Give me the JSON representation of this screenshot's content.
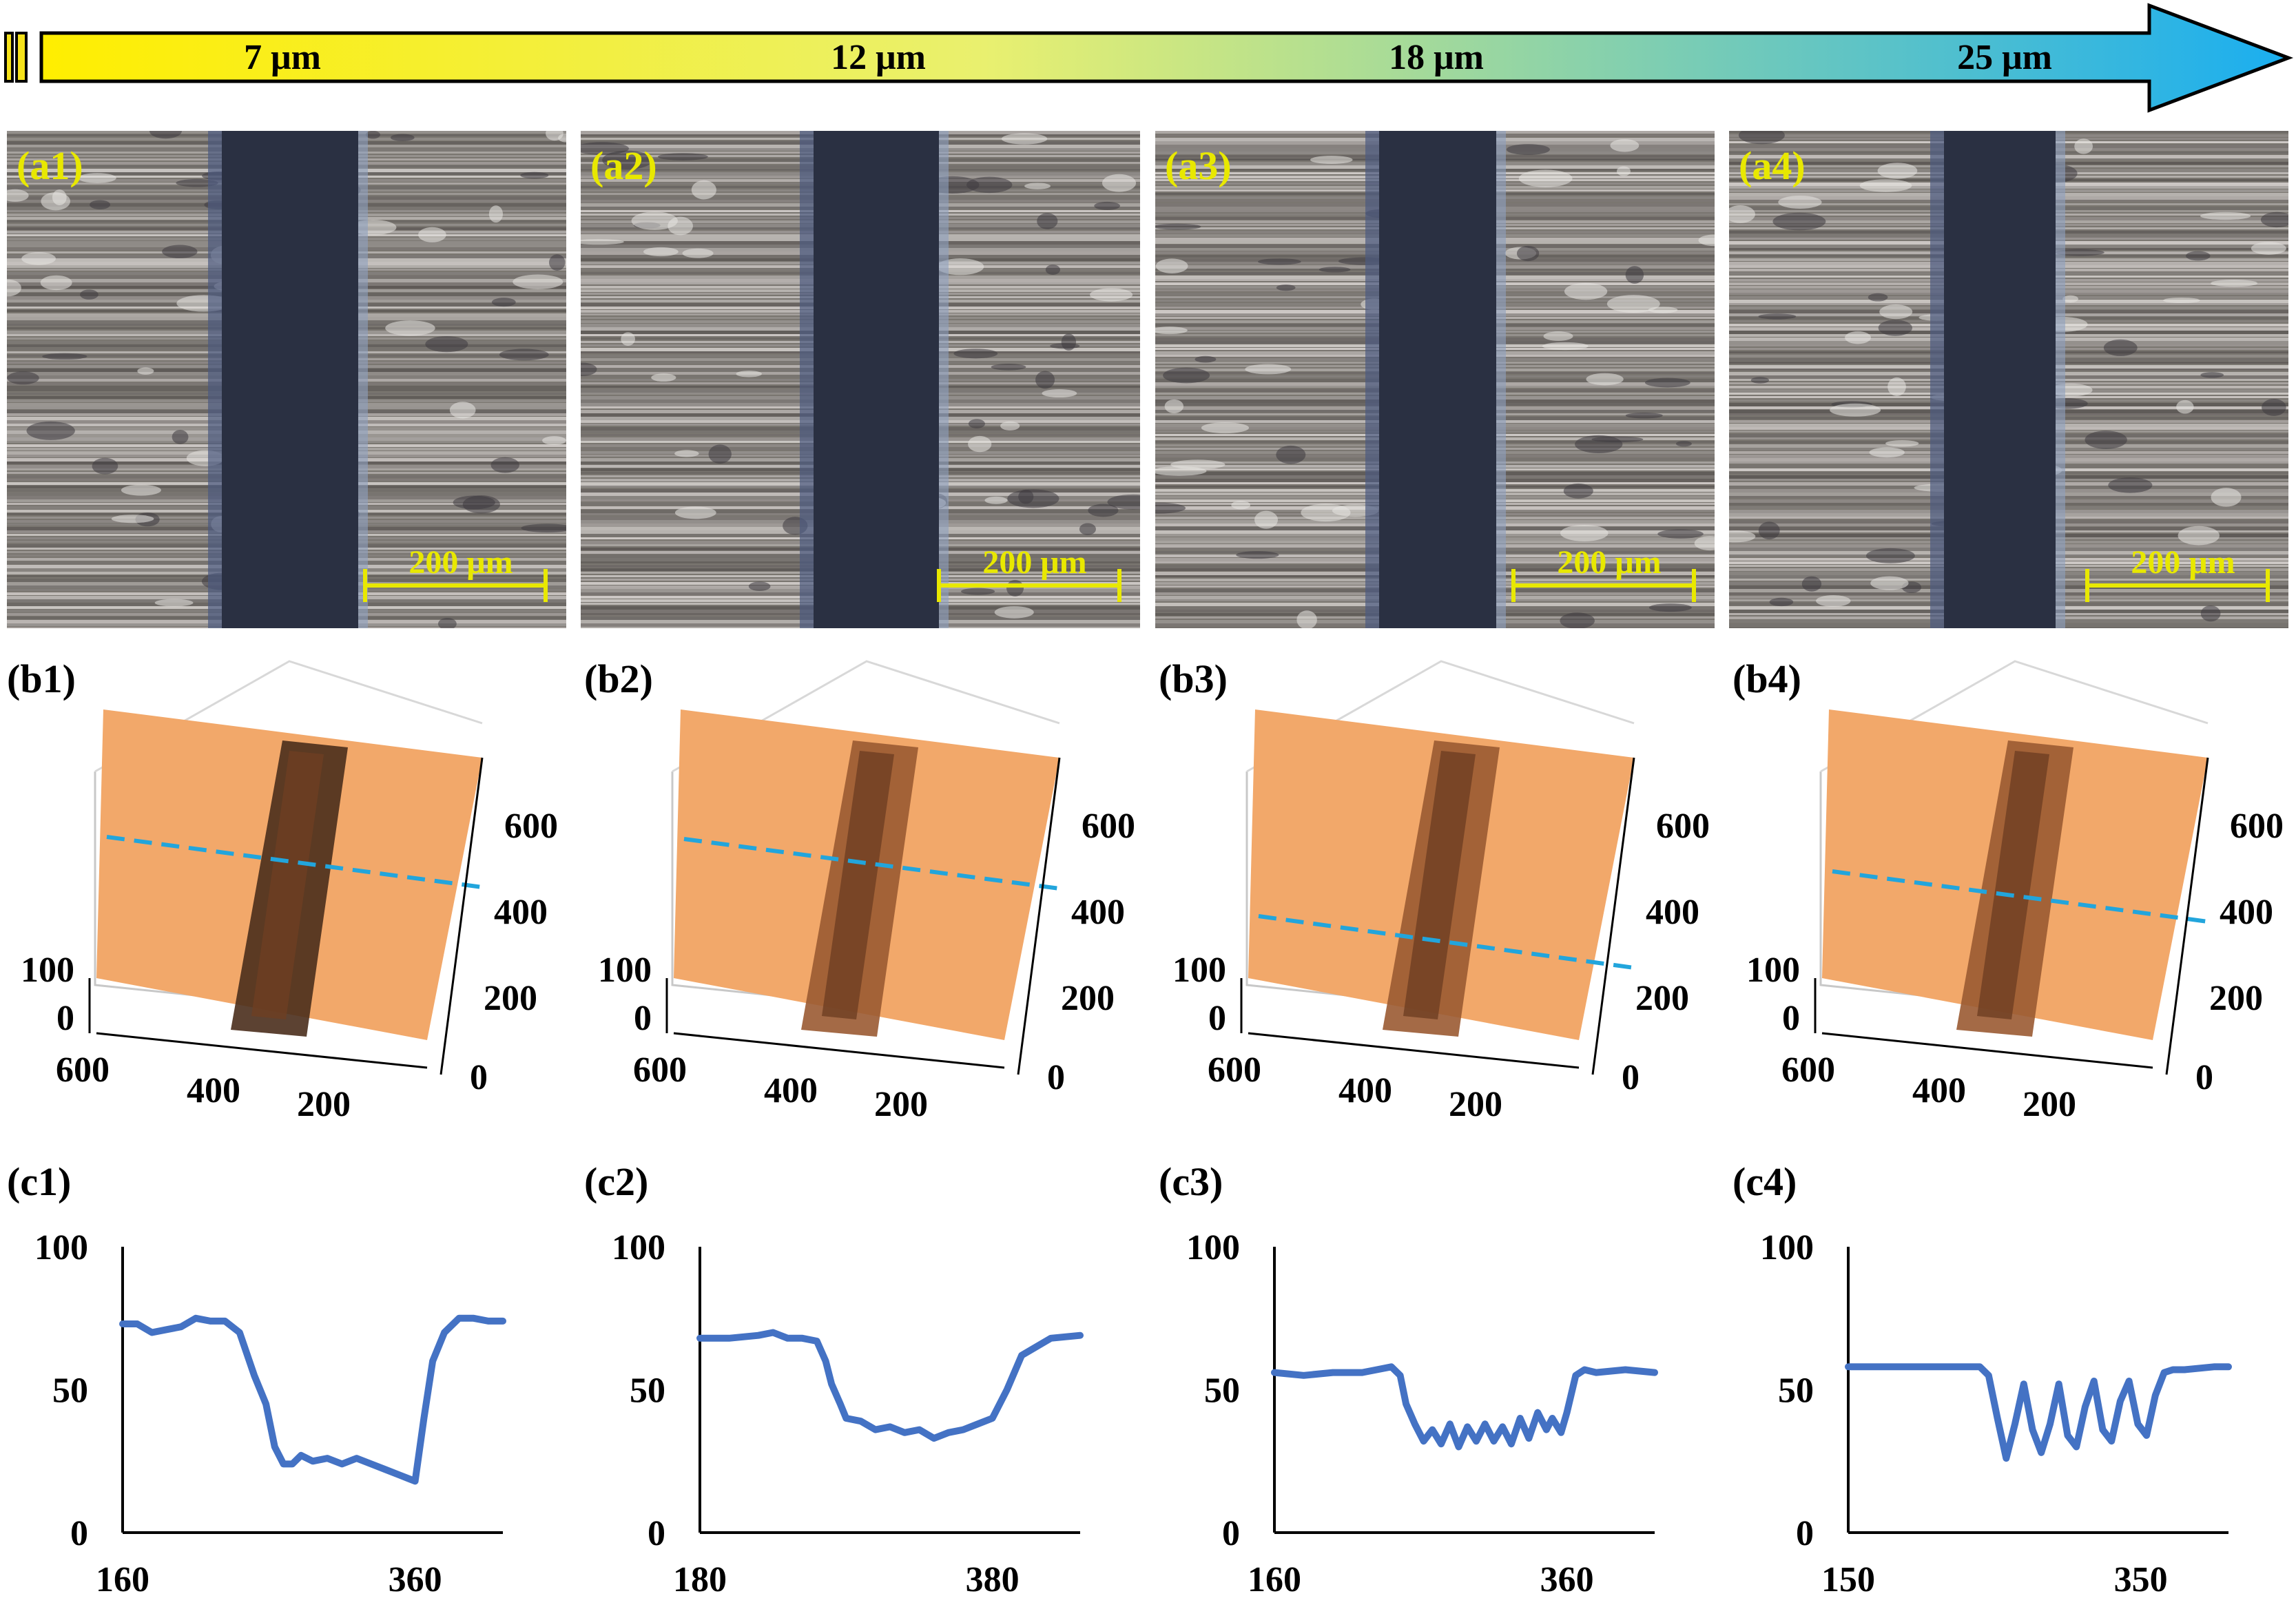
{
  "thickness_arrow": {
    "labels": [
      "7 μm",
      "12 μm",
      "18 μm",
      "25 μm"
    ],
    "gradient_start": "#ffee00",
    "gradient_mid": "#e9f06f",
    "gradient_end": "#1aaef0"
  },
  "colors": {
    "micrograph_label": "#e8e800",
    "scale_bar": "#e8e800",
    "track_dark": "#2a3042",
    "surface_bright": "#b8b4ae",
    "surface_3d": "#f2a86a",
    "groove_3d": "#4a2e1c",
    "dashed_line": "#22a5dc",
    "profile_line": "#4472c4"
  },
  "micrographs": [
    {
      "label": "(a1)",
      "scale_bar": "200 μm"
    },
    {
      "label": "(a2)",
      "scale_bar": "200 μm"
    },
    {
      "label": "(a3)",
      "scale_bar": "200 μm"
    },
    {
      "label": "(a4)",
      "scale_bar": "200 μm"
    }
  ],
  "surface_3d": [
    {
      "label": "(b1)",
      "z_ticks": [
        "100",
        "0"
      ],
      "right_ticks": [
        "600",
        "400",
        "200",
        "0"
      ],
      "bottom_ticks": [
        "600",
        "400",
        "200"
      ]
    },
    {
      "label": "(b2)",
      "z_ticks": [
        "100",
        "0"
      ],
      "right_ticks": [
        "600",
        "400",
        "200",
        "0"
      ],
      "bottom_ticks": [
        "600",
        "400",
        "200"
      ]
    },
    {
      "label": "(b3)",
      "z_ticks": [
        "100",
        "0"
      ],
      "right_ticks": [
        "600",
        "400",
        "200",
        "0"
      ],
      "bottom_ticks": [
        "600",
        "400",
        "200"
      ]
    },
    {
      "label": "(b4)",
      "z_ticks": [
        "100",
        "0"
      ],
      "right_ticks": [
        "600",
        "400",
        "200",
        "0"
      ],
      "bottom_ticks": [
        "600",
        "400",
        "200"
      ]
    }
  ],
  "chart_data": [
    {
      "type": "line",
      "label": "(c1)",
      "x_ticks": [
        "160",
        "360"
      ],
      "xlim": [
        160,
        420
      ],
      "y_ticks": [
        "100",
        "50",
        "0"
      ],
      "ylim": [
        0,
        100
      ],
      "series": [
        {
          "x": [
            160,
            170,
            180,
            190,
            200,
            210,
            220,
            230,
            240,
            250,
            258,
            264,
            270,
            276,
            282,
            290,
            300,
            310,
            320,
            330,
            340,
            350,
            355,
            360,
            366,
            372,
            380,
            390,
            400,
            410,
            420
          ],
          "y": [
            73,
            73,
            70,
            71,
            72,
            75,
            74,
            74,
            70,
            55,
            45,
            30,
            24,
            24,
            27,
            25,
            26,
            24,
            26,
            24,
            22,
            20,
            19,
            18,
            40,
            60,
            70,
            75,
            75,
            74,
            74
          ]
        }
      ]
    },
    {
      "type": "line",
      "label": "(c2)",
      "x_ticks": [
        "180",
        "380"
      ],
      "xlim": [
        180,
        440
      ],
      "y_ticks": [
        "100",
        "50",
        "0"
      ],
      "ylim": [
        0,
        100
      ],
      "series": [
        {
          "x": [
            180,
            200,
            220,
            230,
            240,
            250,
            260,
            266,
            270,
            276,
            280,
            290,
            300,
            310,
            320,
            330,
            340,
            350,
            360,
            370,
            380,
            390,
            400,
            420,
            440
          ],
          "y": [
            68,
            68,
            69,
            70,
            68,
            68,
            67,
            60,
            52,
            45,
            40,
            39,
            36,
            37,
            35,
            36,
            33,
            35,
            36,
            38,
            40,
            50,
            62,
            68,
            69
          ]
        }
      ]
    },
    {
      "type": "line",
      "label": "(c3)",
      "x_ticks": [
        "160",
        "360"
      ],
      "xlim": [
        160,
        420
      ],
      "y_ticks": [
        "100",
        "50",
        "0"
      ],
      "ylim": [
        0,
        100
      ],
      "series": [
        {
          "x": [
            160,
            180,
            200,
            220,
            230,
            240,
            246,
            250,
            256,
            262,
            268,
            274,
            280,
            286,
            292,
            298,
            304,
            310,
            316,
            322,
            328,
            334,
            340,
            346,
            350,
            356,
            360,
            366,
            372,
            380,
            400,
            420
          ],
          "y": [
            56,
            55,
            56,
            56,
            57,
            58,
            55,
            45,
            38,
            32,
            36,
            31,
            38,
            30,
            37,
            32,
            38,
            32,
            37,
            31,
            40,
            33,
            42,
            36,
            40,
            35,
            42,
            55,
            57,
            56,
            57,
            56
          ]
        }
      ]
    },
    {
      "type": "line",
      "label": "(c4)",
      "x_ticks": [
        "150",
        "350"
      ],
      "xlim": [
        150,
        410
      ],
      "y_ticks": [
        "100",
        "50",
        "0"
      ],
      "ylim": [
        0,
        100
      ],
      "series": [
        {
          "x": [
            150,
            170,
            190,
            210,
            230,
            240,
            246,
            252,
            258,
            264,
            270,
            276,
            282,
            288,
            294,
            300,
            306,
            312,
            318,
            324,
            330,
            336,
            342,
            348,
            354,
            360,
            366,
            372,
            380,
            400,
            410
          ],
          "y": [
            58,
            58,
            58,
            58,
            58,
            58,
            55,
            40,
            26,
            38,
            52,
            36,
            28,
            38,
            52,
            34,
            30,
            44,
            53,
            36,
            32,
            46,
            53,
            38,
            34,
            48,
            56,
            57,
            57,
            58,
            58
          ]
        }
      ]
    }
  ]
}
